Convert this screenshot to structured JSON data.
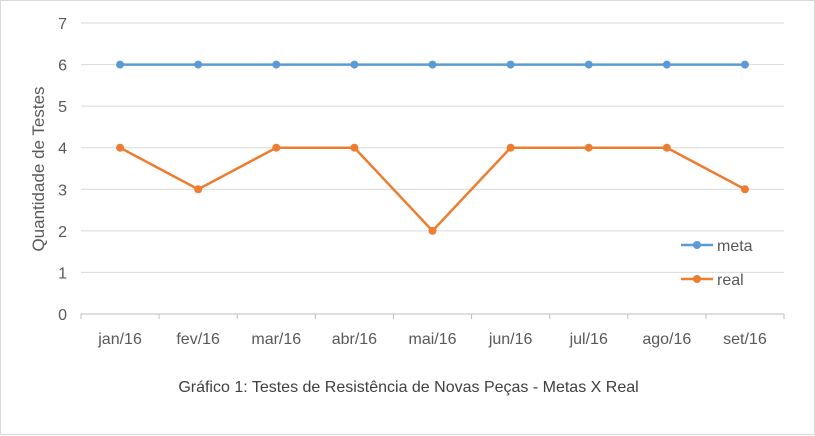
{
  "chart_data": {
    "type": "line",
    "categories": [
      "jan/16",
      "fev/16",
      "mar/16",
      "abr/16",
      "mai/16",
      "jun/16",
      "jul/16",
      "ago/16",
      "set/16"
    ],
    "series": [
      {
        "name": "meta",
        "values": [
          6,
          6,
          6,
          6,
          6,
          6,
          6,
          6,
          6
        ],
        "color": "#5b9bd5"
      },
      {
        "name": "real",
        "values": [
          4,
          3,
          4,
          4,
          2,
          4,
          4,
          4,
          3
        ],
        "color": "#ed7d31"
      }
    ],
    "title": "",
    "caption": "Gráfico 1: Testes de Resistência de Novas Peças - Metas X Real",
    "xlabel": "",
    "ylabel": "Quantidade de Testes",
    "ylim": [
      0,
      7
    ],
    "yticks": [
      0,
      1,
      2,
      3,
      4,
      5,
      6,
      7
    ],
    "grid": true,
    "legend_position": "right"
  }
}
